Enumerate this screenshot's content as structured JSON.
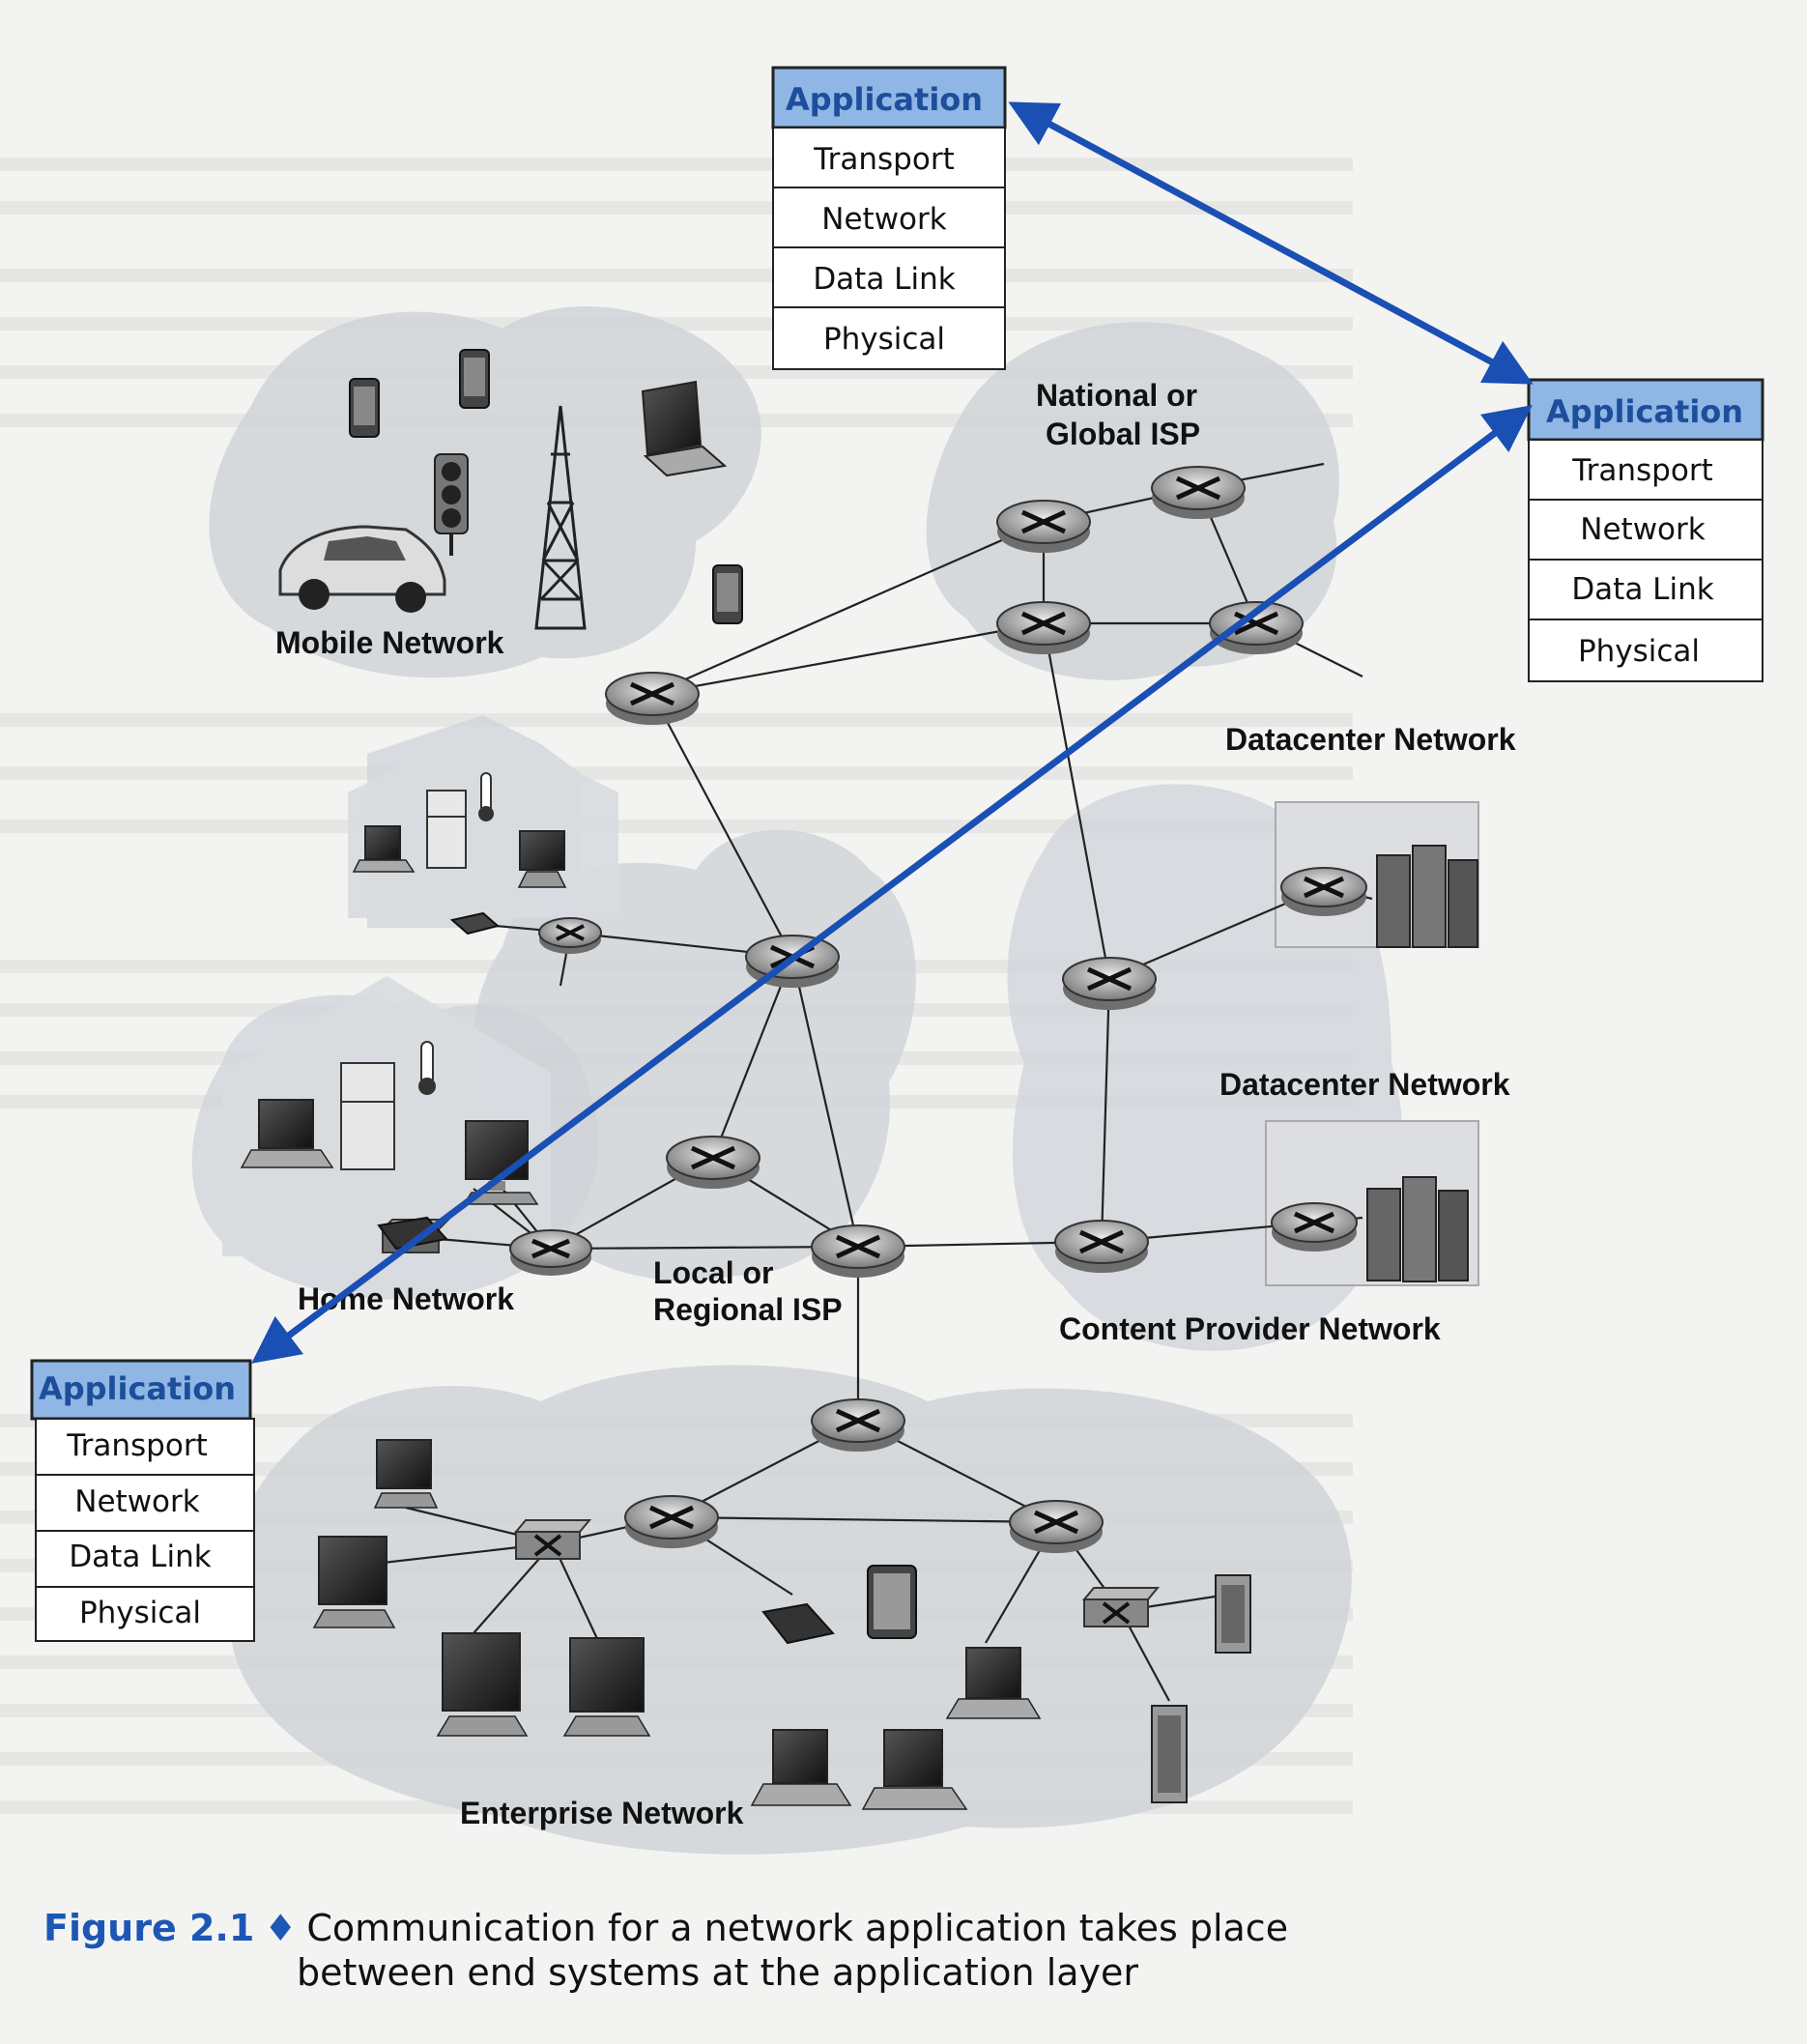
{
  "figure": {
    "number": "Figure 2.1",
    "bullet": "♦",
    "caption_line1": "Communication for a network application takes place",
    "caption_line2": "between end systems at the application layer"
  },
  "stacks": {
    "top": [
      "Application",
      "Transport",
      "Network",
      "Data Link",
      "Physical"
    ],
    "right": [
      "Application",
      "Transport",
      "Network",
      "Data Link",
      "Physical"
    ],
    "left": [
      "Application",
      "Transport",
      "Network",
      "Data Link",
      "Physical"
    ]
  },
  "networks": {
    "mobile": "Mobile Network",
    "national_line1": "National or",
    "national_line2": "Global ISP",
    "datacenter1": "Datacenter Network",
    "datacenter2": "Datacenter Network",
    "home": "Home Network",
    "local_line1": "Local or",
    "local_line2": "Regional ISP",
    "content": "Content Provider Network",
    "enterprise": "Enterprise Network"
  },
  "colors": {
    "arrow": "#1a4fb4",
    "app_fill": "#8fb6e4",
    "cloud": "#cfd3d8",
    "caption_blue": "#1d57b5"
  }
}
